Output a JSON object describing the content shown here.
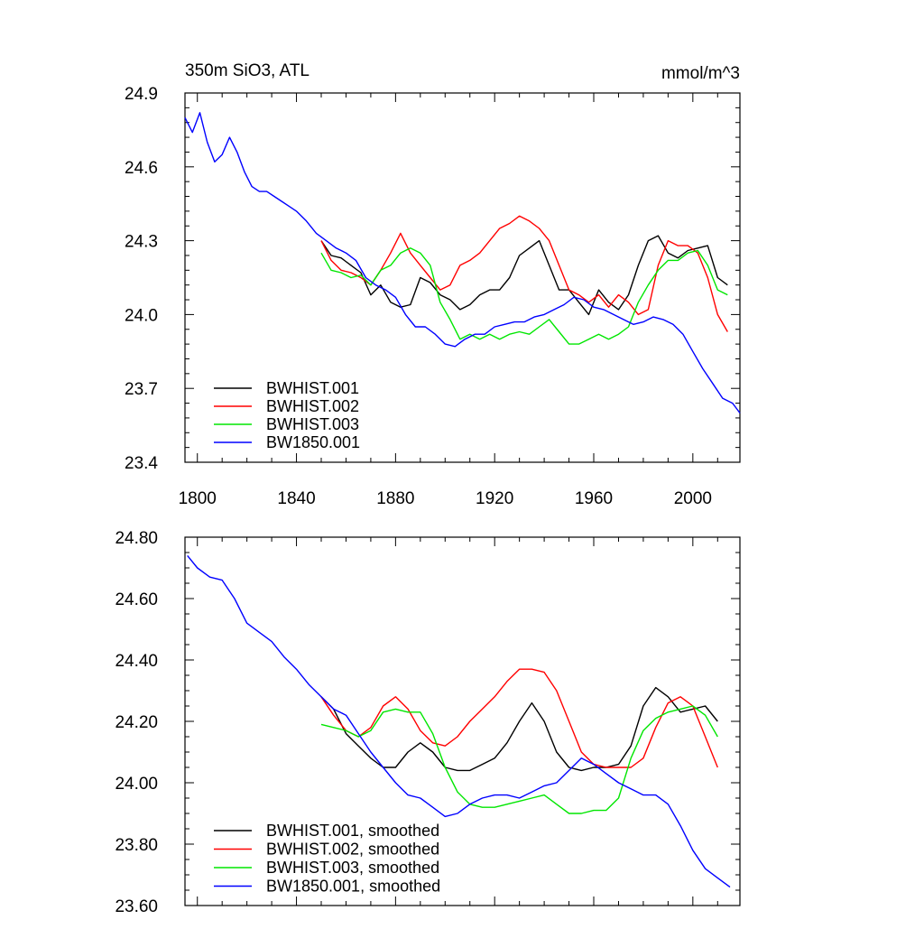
{
  "chart_data": [
    {
      "type": "line",
      "title": "350m SiO3, ATL",
      "units": "mmol/m^3",
      "xlim": [
        1795,
        2019
      ],
      "ylim": [
        23.4,
        24.9
      ],
      "xticks": [
        1800,
        1840,
        1880,
        1920,
        1960,
        2000
      ],
      "xtick_labels": [
        "1800",
        "1840",
        "1880",
        "1920",
        "1960",
        "2000"
      ],
      "yticks": [
        23.4,
        23.7,
        24.0,
        24.3,
        24.6,
        24.9
      ],
      "ytick_labels": [
        "23.4",
        "23.7",
        "24.0",
        "24.3",
        "24.6",
        "24.9"
      ],
      "legend_position": "bottom-left",
      "series": [
        {
          "name": "BWHIST.001",
          "color": "#000000",
          "x": [
            1850,
            1854,
            1858,
            1862,
            1866,
            1870,
            1874,
            1878,
            1882,
            1886,
            1890,
            1894,
            1898,
            1902,
            1906,
            1910,
            1914,
            1918,
            1922,
            1926,
            1930,
            1934,
            1938,
            1942,
            1946,
            1950,
            1954,
            1958,
            1962,
            1966,
            1970,
            1974,
            1978,
            1982,
            1986,
            1990,
            1994,
            1998,
            2002,
            2006,
            2010,
            2014
          ],
          "y": [
            24.3,
            24.24,
            24.23,
            24.2,
            24.17,
            24.08,
            24.12,
            24.05,
            24.03,
            24.04,
            24.15,
            24.13,
            24.08,
            24.06,
            24.02,
            24.04,
            24.08,
            24.1,
            24.1,
            24.15,
            24.24,
            24.27,
            24.3,
            24.2,
            24.1,
            24.1,
            24.05,
            24.0,
            24.1,
            24.05,
            24.02,
            24.08,
            24.2,
            24.3,
            24.32,
            24.25,
            24.23,
            24.26,
            24.27,
            24.28,
            24.15,
            24.12
          ]
        },
        {
          "name": "BWHIST.002",
          "color": "#ff0000",
          "x": [
            1850,
            1854,
            1858,
            1862,
            1866,
            1870,
            1874,
            1878,
            1882,
            1886,
            1890,
            1894,
            1898,
            1902,
            1906,
            1910,
            1914,
            1918,
            1922,
            1926,
            1930,
            1934,
            1938,
            1942,
            1946,
            1950,
            1954,
            1958,
            1962,
            1966,
            1970,
            1974,
            1978,
            1982,
            1986,
            1990,
            1994,
            1998,
            2002,
            2006,
            2010,
            2014
          ],
          "y": [
            24.3,
            24.22,
            24.18,
            24.17,
            24.15,
            24.12,
            24.18,
            24.25,
            24.33,
            24.25,
            24.2,
            24.15,
            24.1,
            24.12,
            24.2,
            24.22,
            24.25,
            24.3,
            24.35,
            24.37,
            24.4,
            24.38,
            24.35,
            24.3,
            24.2,
            24.1,
            24.08,
            24.05,
            24.08,
            24.03,
            24.08,
            24.05,
            24.0,
            24.02,
            24.2,
            24.3,
            24.28,
            24.28,
            24.25,
            24.15,
            24.0,
            23.93
          ]
        },
        {
          "name": "BWHIST.003",
          "color": "#00e600",
          "x": [
            1850,
            1854,
            1858,
            1862,
            1866,
            1870,
            1874,
            1878,
            1882,
            1886,
            1890,
            1894,
            1898,
            1902,
            1906,
            1910,
            1914,
            1918,
            1922,
            1926,
            1930,
            1934,
            1938,
            1942,
            1946,
            1950,
            1954,
            1958,
            1962,
            1966,
            1970,
            1974,
            1978,
            1982,
            1986,
            1990,
            1994,
            1998,
            2002,
            2006,
            2010,
            2014
          ],
          "y": [
            24.25,
            24.18,
            24.17,
            24.15,
            24.16,
            24.12,
            24.18,
            24.2,
            24.25,
            24.27,
            24.25,
            24.2,
            24.05,
            23.98,
            23.9,
            23.92,
            23.9,
            23.92,
            23.9,
            23.92,
            23.93,
            23.92,
            23.95,
            23.98,
            23.93,
            23.88,
            23.88,
            23.9,
            23.92,
            23.9,
            23.92,
            23.95,
            24.05,
            24.12,
            24.18,
            24.22,
            24.22,
            24.25,
            24.26,
            24.2,
            24.1,
            24.08
          ]
        },
        {
          "name": "BW1850.001",
          "color": "#0000ff",
          "x": [
            1795,
            1798,
            1801,
            1804,
            1807,
            1810,
            1813,
            1816,
            1819,
            1822,
            1825,
            1828,
            1831,
            1834,
            1837,
            1840,
            1844,
            1848,
            1852,
            1856,
            1860,
            1864,
            1868,
            1872,
            1876,
            1880,
            1884,
            1888,
            1892,
            1896,
            1900,
            1904,
            1908,
            1912,
            1916,
            1920,
            1924,
            1928,
            1932,
            1936,
            1940,
            1944,
            1948,
            1952,
            1956,
            1960,
            1964,
            1968,
            1972,
            1976,
            1980,
            1984,
            1988,
            1992,
            1996,
            2000,
            2004,
            2008,
            2012,
            2016,
            2019
          ],
          "y": [
            24.8,
            24.74,
            24.82,
            24.7,
            24.62,
            24.65,
            24.72,
            24.66,
            24.58,
            24.52,
            24.5,
            24.5,
            24.48,
            24.46,
            24.44,
            24.42,
            24.38,
            24.33,
            24.3,
            24.27,
            24.25,
            24.22,
            24.15,
            24.12,
            24.1,
            24.07,
            24.0,
            23.95,
            23.95,
            23.92,
            23.88,
            23.87,
            23.9,
            23.92,
            23.92,
            23.95,
            23.96,
            23.97,
            23.97,
            23.99,
            24.0,
            24.02,
            24.04,
            24.07,
            24.06,
            24.03,
            24.02,
            24.0,
            23.98,
            23.96,
            23.97,
            23.99,
            23.98,
            23.96,
            23.92,
            23.85,
            23.78,
            23.72,
            23.66,
            23.64,
            23.6
          ]
        }
      ]
    },
    {
      "type": "line",
      "xlim": [
        1795,
        2019
      ],
      "ylim": [
        23.6,
        24.8
      ],
      "xticks": [
        1800,
        1840,
        1880,
        1920,
        1960,
        2000
      ],
      "xtick_labels": [],
      "yticks": [
        23.6,
        23.8,
        24.0,
        24.2,
        24.4,
        24.6,
        24.8
      ],
      "ytick_labels": [
        "23.60",
        "23.80",
        "24.00",
        "24.20",
        "24.40",
        "24.60",
        "24.80"
      ],
      "legend_position": "bottom-left",
      "series": [
        {
          "name": "BWHIST.001, smoothed",
          "color": "#000000",
          "x": [
            1850,
            1855,
            1860,
            1865,
            1870,
            1875,
            1880,
            1885,
            1890,
            1895,
            1900,
            1905,
            1910,
            1915,
            1920,
            1925,
            1930,
            1935,
            1940,
            1945,
            1950,
            1955,
            1960,
            1965,
            1970,
            1975,
            1980,
            1985,
            1990,
            1995,
            2000,
            2005,
            2010
          ],
          "y": [
            24.28,
            24.24,
            24.16,
            24.12,
            24.08,
            24.05,
            24.05,
            24.1,
            24.13,
            24.1,
            24.05,
            24.04,
            24.04,
            24.06,
            24.08,
            24.13,
            24.2,
            24.26,
            24.2,
            24.1,
            24.05,
            24.04,
            24.05,
            24.05,
            24.06,
            24.12,
            24.25,
            24.31,
            24.28,
            24.23,
            24.24,
            24.25,
            24.2
          ]
        },
        {
          "name": "BWHIST.002, smoothed",
          "color": "#ff0000",
          "x": [
            1850,
            1855,
            1860,
            1865,
            1870,
            1875,
            1880,
            1885,
            1890,
            1895,
            1900,
            1905,
            1910,
            1915,
            1920,
            1925,
            1930,
            1935,
            1940,
            1945,
            1950,
            1955,
            1960,
            1965,
            1970,
            1975,
            1980,
            1985,
            1990,
            1995,
            2000,
            2005,
            2010
          ],
          "y": [
            24.28,
            24.22,
            24.17,
            24.15,
            24.18,
            24.25,
            24.28,
            24.24,
            24.17,
            24.13,
            24.12,
            24.15,
            24.2,
            24.24,
            24.28,
            24.33,
            24.37,
            24.37,
            24.36,
            24.3,
            24.2,
            24.1,
            24.06,
            24.05,
            24.05,
            24.05,
            24.08,
            24.18,
            24.26,
            24.28,
            24.25,
            24.15,
            24.05
          ]
        },
        {
          "name": "BWHIST.003, smoothed",
          "color": "#00e600",
          "x": [
            1850,
            1855,
            1860,
            1865,
            1870,
            1875,
            1880,
            1885,
            1890,
            1895,
            1900,
            1905,
            1910,
            1915,
            1920,
            1925,
            1930,
            1935,
            1940,
            1945,
            1950,
            1955,
            1960,
            1965,
            1970,
            1975,
            1980,
            1985,
            1990,
            1995,
            2000,
            2005,
            2010
          ],
          "y": [
            24.19,
            24.18,
            24.17,
            24.15,
            24.17,
            24.23,
            24.24,
            24.23,
            24.23,
            24.16,
            24.05,
            23.97,
            23.93,
            23.92,
            23.92,
            23.93,
            23.94,
            23.95,
            23.96,
            23.93,
            23.9,
            23.9,
            23.91,
            23.91,
            23.95,
            24.08,
            24.17,
            24.21,
            24.23,
            24.24,
            24.25,
            24.22,
            24.15
          ]
        },
        {
          "name": "BW1850.001, smoothed",
          "color": "#0000ff",
          "x": [
            1796,
            1800,
            1805,
            1810,
            1815,
            1820,
            1825,
            1830,
            1835,
            1840,
            1845,
            1850,
            1855,
            1860,
            1865,
            1870,
            1875,
            1880,
            1885,
            1890,
            1895,
            1900,
            1905,
            1910,
            1915,
            1920,
            1925,
            1930,
            1935,
            1940,
            1945,
            1950,
            1955,
            1960,
            1965,
            1970,
            1975,
            1980,
            1985,
            1990,
            1995,
            2000,
            2005,
            2010,
            2015
          ],
          "y": [
            24.74,
            24.7,
            24.67,
            24.66,
            24.6,
            24.52,
            24.49,
            24.46,
            24.41,
            24.37,
            24.32,
            24.28,
            24.24,
            24.22,
            24.16,
            24.1,
            24.05,
            24.0,
            23.96,
            23.95,
            23.92,
            23.89,
            23.9,
            23.93,
            23.95,
            23.96,
            23.96,
            23.95,
            23.97,
            23.99,
            24.0,
            24.04,
            24.08,
            24.06,
            24.03,
            24.0,
            23.98,
            23.96,
            23.96,
            23.93,
            23.86,
            23.78,
            23.72,
            23.69,
            23.66
          ]
        }
      ]
    }
  ]
}
